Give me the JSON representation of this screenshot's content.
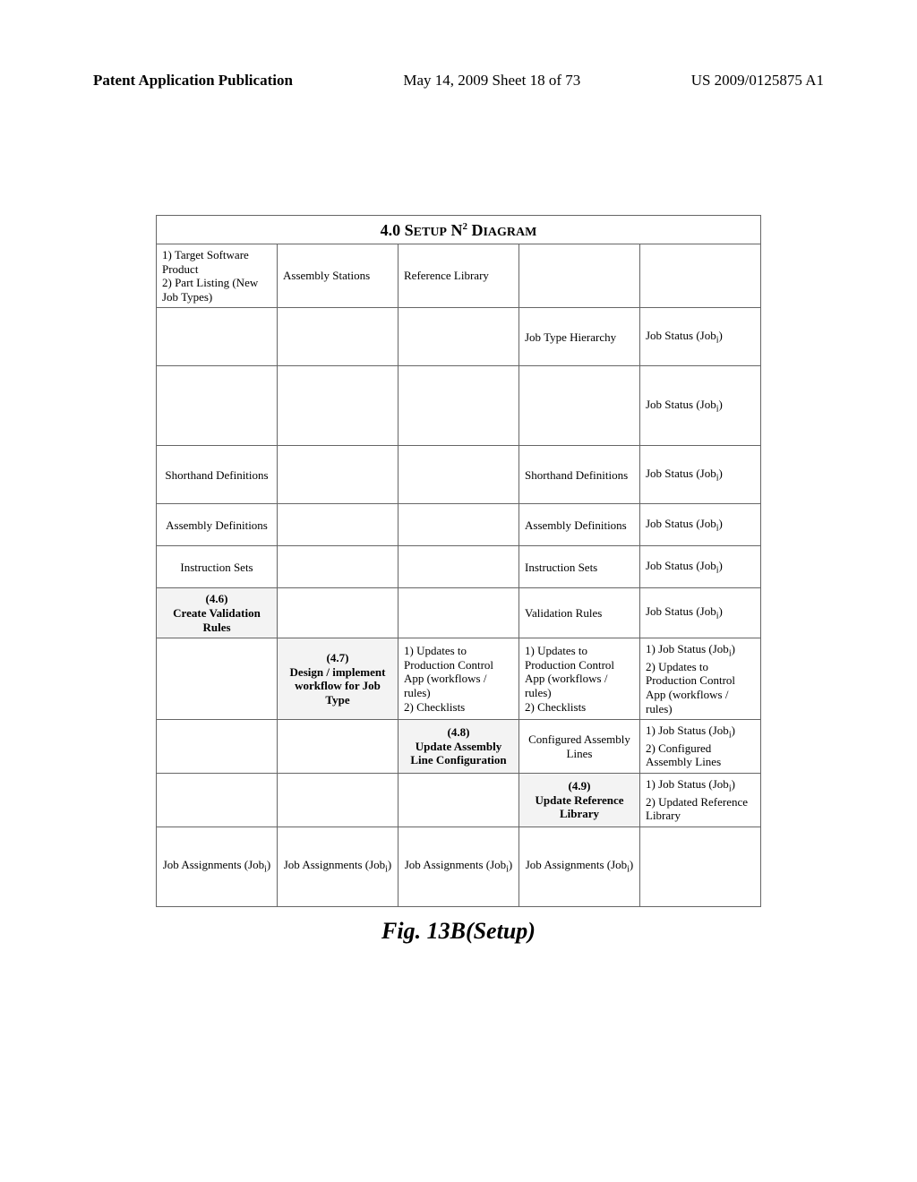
{
  "header": {
    "left": "Patent Application Publication",
    "mid": "May 14, 2009  Sheet 18 of 73",
    "right": "US 2009/0125875 A1"
  },
  "title_prefix": "4.0 S",
  "title_etup": "ETUP",
  "title_n": " N",
  "title_sup": "2",
  "title_d": " D",
  "title_iagram": "IAGRAM",
  "rows": {
    "r0": {
      "c0": "1) Target Software Product\n2) Part Listing (New Job Types)",
      "c1": "Assembly Stations",
      "c2": "Reference Library",
      "c3": "",
      "c4": ""
    },
    "r1": {
      "c0": "",
      "c1": "",
      "c2": "",
      "c3": "Job Type Hierarchy",
      "c4_pre": "Job Status (Job",
      "c4_sub": "i",
      "c4_post": ")"
    },
    "r2": {
      "c0": "",
      "c1": "",
      "c2": "",
      "c3": "",
      "c4_pre": "Job Status (Job",
      "c4_sub": "i",
      "c4_post": ")"
    },
    "r3": {
      "c0": "Shorthand Definitions",
      "c1": "",
      "c2": "",
      "c3": "Shorthand Definitions",
      "c4_pre": "Job Status (Job",
      "c4_sub": "i",
      "c4_post": ")"
    },
    "r4": {
      "c0": "Assembly Definitions",
      "c1": "",
      "c2": "",
      "c3": "Assembly Definitions",
      "c4_pre": "Job Status (Job",
      "c4_sub": "i",
      "c4_post": ")"
    },
    "r5": {
      "c0": "Instruction Sets",
      "c1": "",
      "c2": "",
      "c3": "Instruction Sets",
      "c4_pre": "Job Status (Job",
      "c4_sub": "i",
      "c4_post": ")"
    },
    "r6": {
      "c0": "(4.6)\nCreate Validation Rules",
      "c1": "",
      "c2": "",
      "c3": "Validation Rules",
      "c4_pre": "Job Status (Job",
      "c4_sub": "i",
      "c4_post": ")"
    },
    "r7": {
      "c0": "",
      "c1": "(4.7)\nDesign / implement workflow for Job Type",
      "c2": "1) Updates to Production Control App (workflows / rules)\n2) Checklists",
      "c3": "1) Updates to Production Control App (workflows / rules)\n2) Checklists",
      "c4_pre": "1) Job Status (Job",
      "c4_sub": "i",
      "c4_post": ")\n2) Updates to Production Control App (workflows / rules)"
    },
    "r8": {
      "c0": "",
      "c1": "",
      "c2": "(4.8)\nUpdate Assembly Line Configuration",
      "c3": "Configured Assembly Lines",
      "c4_pre": "1) Job Status (Job",
      "c4_sub": "i",
      "c4_post": ")\n2) Configured Assembly Lines"
    },
    "r9": {
      "c0": "",
      "c1": "",
      "c2": "",
      "c3": "(4.9)\nUpdate Reference Library",
      "c4_pre": "1) Job Status (Job",
      "c4_sub": "i",
      "c4_post": ")\n2) Updated Reference Library"
    },
    "r10": {
      "c0_pre": "Job Assignments (Job",
      "c0_sub": "i",
      "c0_post": ")",
      "c1_pre": "Job Assignments (Job",
      "c1_sub": "i",
      "c1_post": ")",
      "c2_pre": "Job Assignments (Job",
      "c2_sub": "i",
      "c2_post": ")",
      "c3_pre": "Job Assignments (Job",
      "c3_sub": "i",
      "c3_post": ")",
      "c4": ""
    }
  },
  "figure_label": "Fig. 13B(Setup)"
}
